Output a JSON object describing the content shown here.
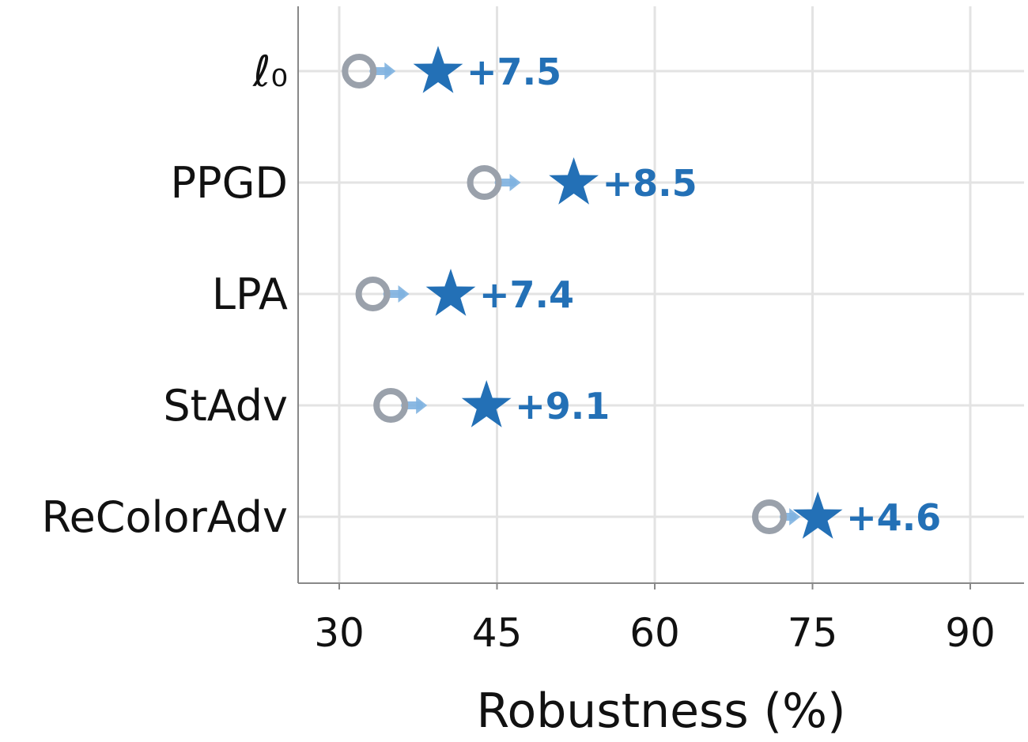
{
  "chart_data": {
    "type": "scatter",
    "xlabel": "Robustness (%)",
    "ylabel": "",
    "xlim": [
      26,
      95
    ],
    "xticks": [
      30,
      45,
      60,
      75,
      90
    ],
    "grid": true,
    "categories": [
      "ℓ₀",
      "PPGD",
      "LPA",
      "StAdv",
      "ReColorAdv"
    ],
    "series": [
      {
        "marker": "open-circle",
        "color": "#9aa1ab",
        "values": [
          31.9,
          43.8,
          33.2,
          34.9,
          70.9
        ]
      },
      {
        "marker": "star",
        "color": "#2370b6",
        "values": [
          39.4,
          52.3,
          40.6,
          44.0,
          75.5
        ]
      }
    ],
    "deltas": [
      "+7.5",
      "+8.5",
      "+7.4",
      "+9.1",
      "+4.6"
    ],
    "arrow_color": "#7fb2e0"
  }
}
